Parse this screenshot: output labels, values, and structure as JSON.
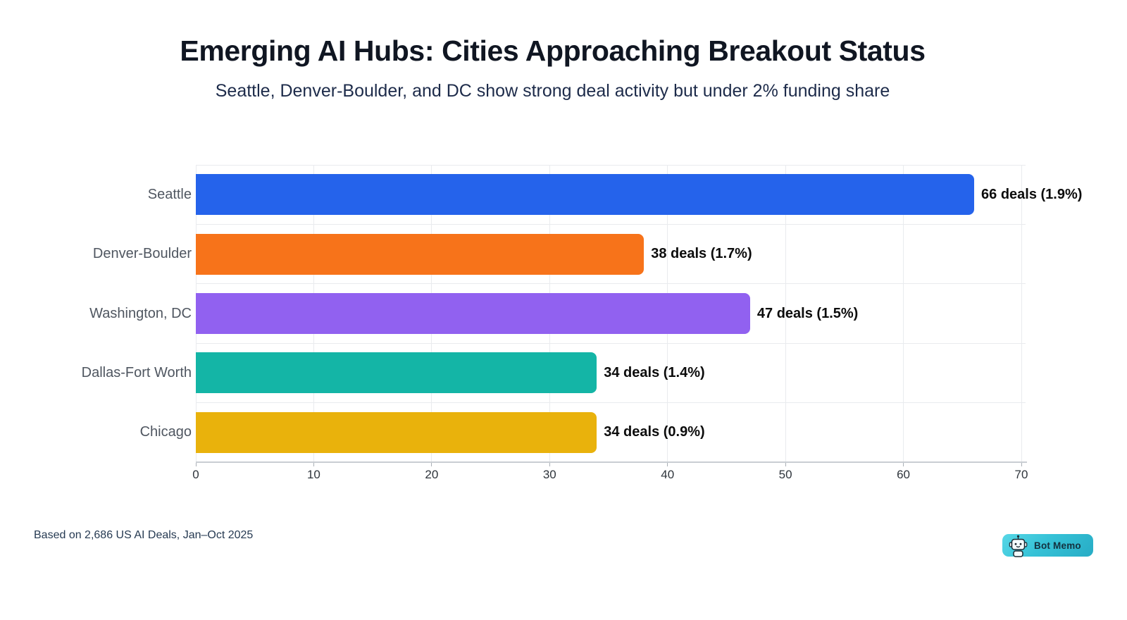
{
  "header": {
    "title": "Emerging AI Hubs: Cities Approaching Breakout Status",
    "subtitle": "Seattle, Denver-Boulder, and DC show strong deal activity but under 2% funding share"
  },
  "chart_data": {
    "type": "bar",
    "orientation": "horizontal",
    "title": "Emerging AI Hubs: Cities Approaching Breakout Status",
    "subtitle": "Seattle, Denver-Boulder, and DC show strong deal activity but under 2% funding share",
    "categories": [
      "Seattle",
      "Denver-Boulder",
      "Washington, DC",
      "Dallas-Fort Worth",
      "Chicago"
    ],
    "series": [
      {
        "name": "Deals",
        "values": [
          66,
          38,
          47,
          34,
          34
        ]
      }
    ],
    "funding_share_pct": [
      1.9,
      1.7,
      1.5,
      1.4,
      0.9
    ],
    "bar_labels": [
      "66 deals (1.9%)",
      "38 deals (1.7%)",
      "47 deals (1.5%)",
      "34 deals (1.4%)",
      "34 deals (0.9%)"
    ],
    "bar_colors": [
      "#2563eb",
      "#f7731a",
      "#9161f0",
      "#14b5a6",
      "#e9b20c"
    ],
    "xlabel": "",
    "ylabel": "",
    "xlim": [
      0,
      70
    ],
    "x_ticks": [
      0,
      10,
      20,
      30,
      40,
      50,
      60,
      70
    ],
    "grid": true,
    "legend": false
  },
  "footer": {
    "source": "Based on 2,686 US AI Deals, Jan–Oct 2025",
    "badge": {
      "label": "Bot Memo",
      "icon": "robot-icon",
      "bg_color": "#36c2d7",
      "text_color": "#13313f"
    }
  }
}
